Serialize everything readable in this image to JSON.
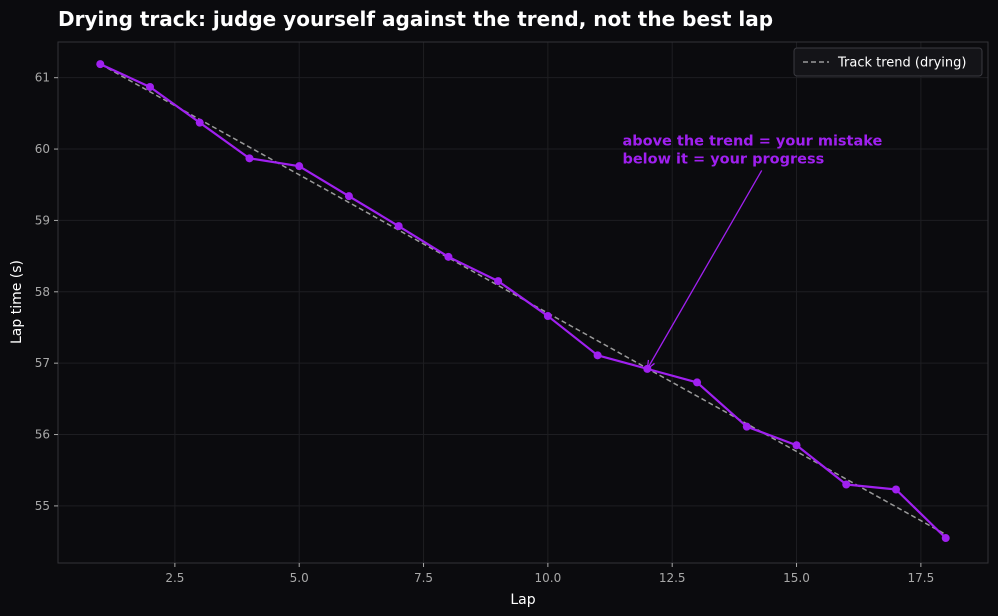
{
  "colors": {
    "background": "#0b0b0e",
    "plot_background": "#0b0b0e",
    "series": "#a020f0",
    "trend": "#9a9a9a",
    "annotation": "#a020f0",
    "text": "#ffffff",
    "tick_text": "#a8a8a8",
    "grid": "#1e1e22",
    "spine": "#333338",
    "legend_bg": "#141418",
    "legend_border": "#3a3a40"
  },
  "chart_data": {
    "type": "line",
    "title": "Drying track: judge yourself against the trend, not the best lap",
    "xlabel": "Lap",
    "ylabel": "Lap time (s)",
    "xlim": [
      0.15,
      18.85
    ],
    "ylim": [
      54.2,
      61.5
    ],
    "xticks": [
      2.5,
      5.0,
      7.5,
      10.0,
      12.5,
      15.0,
      17.5
    ],
    "xtick_labels": [
      "2.5",
      "5.0",
      "7.5",
      "10.0",
      "12.5",
      "15.0",
      "17.5"
    ],
    "yticks": [
      55,
      56,
      57,
      58,
      59,
      60,
      61
    ],
    "ytick_labels": [
      "55",
      "56",
      "57",
      "58",
      "59",
      "60",
      "61"
    ],
    "grid": true,
    "legend_position": "top-right",
    "series": [
      {
        "name": "",
        "style": "solid-with-markers",
        "x": [
          1,
          2,
          3,
          4,
          5,
          6,
          7,
          8,
          9,
          10,
          11,
          12,
          13,
          14,
          15,
          16,
          17,
          18
        ],
        "y": [
          61.19,
          60.87,
          60.37,
          59.87,
          59.76,
          59.34,
          58.92,
          58.49,
          58.15,
          57.66,
          57.11,
          56.92,
          56.73,
          56.11,
          55.85,
          55.3,
          55.23,
          54.55
        ]
      },
      {
        "name": "Track trend (drying)",
        "style": "dashed",
        "x": [
          1,
          18
        ],
        "y": [
          61.19,
          54.6
        ]
      }
    ],
    "annotations": [
      {
        "lines": [
          "above the trend = your mistake",
          "below it = your progress"
        ],
        "text_x": 11.5,
        "text_y": 60.05,
        "arrow_start_x": 14.3,
        "arrow_start_y": 59.7,
        "point_x": 12.0,
        "point_y": 56.92
      }
    ]
  }
}
